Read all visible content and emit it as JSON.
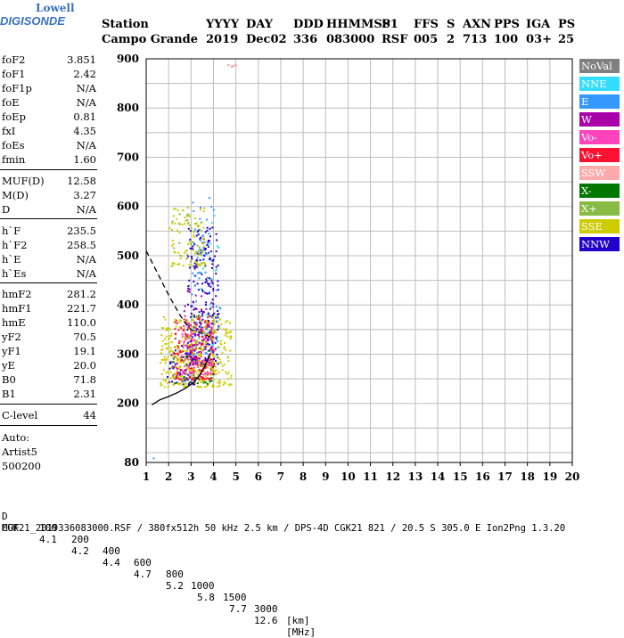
{
  "logo": {
    "line1": "Lowell",
    "line2": "DIGISONDE",
    "color": "#3a6fc4"
  },
  "header": {
    "labels": [
      "Station",
      "YYYY",
      "DAY",
      "DDD",
      "HHMMSS",
      "P1",
      "FFS",
      "S",
      "AXN",
      "PPS",
      "IGA",
      "PS"
    ],
    "values": [
      "Campo Grande",
      "2019",
      "Dec02",
      "336",
      "083000",
      "RSF",
      "005",
      "2",
      "713",
      "100",
      "03+",
      "25"
    ]
  },
  "params": [
    {
      "name": "foF2",
      "value": "3.851"
    },
    {
      "name": "foF1",
      "value": "2.42"
    },
    {
      "name": "foF1p",
      "value": "N/A"
    },
    {
      "name": "foE",
      "value": "N/A"
    },
    {
      "name": "foEp",
      "value": "0.81"
    },
    {
      "name": "fxI",
      "value": "4.35"
    },
    {
      "name": "foEs",
      "value": "N/A"
    },
    {
      "name": "fmin",
      "value": "1.60"
    },
    {
      "name": "MUF(D)",
      "value": "12.58"
    },
    {
      "name": "M(D)",
      "value": "3.27"
    },
    {
      "name": "D",
      "value": "N/A"
    },
    {
      "name": "h`F",
      "value": "235.5"
    },
    {
      "name": "h`F2",
      "value": "258.5"
    },
    {
      "name": "h`E",
      "value": "N/A"
    },
    {
      "name": "h`Es",
      "value": "N/A"
    },
    {
      "name": "hmF2",
      "value": "281.2"
    },
    {
      "name": "hmF1",
      "value": "221.7"
    },
    {
      "name": "hmE",
      "value": "110.0"
    },
    {
      "name": "yF2",
      "value": "70.5"
    },
    {
      "name": "yF1",
      "value": "19.1"
    },
    {
      "name": "yE",
      "value": "20.0"
    },
    {
      "name": "B0",
      "value": "71.8"
    },
    {
      "name": "B1",
      "value": "2.31"
    },
    {
      "name": "C-level",
      "value": "44"
    }
  ],
  "notes": [
    "Auto:",
    "Artist5",
    "500200"
  ],
  "legend": [
    {
      "label": "NoVal",
      "color": "#808080"
    },
    {
      "label": "NNE",
      "color": "#33ddff"
    },
    {
      "label": "E",
      "color": "#3399ff"
    },
    {
      "label": "W",
      "color": "#aa00aa"
    },
    {
      "label": "Vo-",
      "color": "#ff44bb"
    },
    {
      "label": "Vo+",
      "color": "#ff1133"
    },
    {
      "label": "SSW",
      "color": "#ffaaaa"
    },
    {
      "label": "X-",
      "color": "#007700"
    },
    {
      "label": "X+",
      "color": "#88bb44"
    },
    {
      "label": "SSE",
      "color": "#cccc00"
    },
    {
      "label": "NNW",
      "color": "#2200cc"
    }
  ],
  "chart_data": {
    "type": "scatter",
    "xlim": [
      1,
      20
    ],
    "ylim": [
      80,
      900
    ],
    "xticks": [
      "1",
      "2",
      "3",
      "4",
      "5",
      "6",
      "7",
      "8",
      "9",
      "10",
      "11",
      "12",
      "13",
      "14",
      "15",
      "16",
      "17",
      "18",
      "19",
      "20"
    ],
    "yticks": [
      "900",
      "800",
      "700",
      "600",
      "500",
      "400",
      "300",
      "200",
      "80"
    ],
    "grid": true,
    "profile_curve": [
      [
        1.25,
        197
      ],
      [
        1.6,
        207
      ],
      [
        2.0,
        214
      ],
      [
        2.4,
        222
      ],
      [
        2.8,
        232
      ],
      [
        3.1,
        242
      ],
      [
        3.4,
        258
      ],
      [
        3.6,
        275
      ],
      [
        3.75,
        290
      ],
      [
        3.85,
        300
      ]
    ],
    "trace_curve_dashed": [
      [
        1.0,
        510
      ],
      [
        1.5,
        465
      ],
      [
        2.0,
        420
      ],
      [
        2.5,
        380
      ],
      [
        2.8,
        360
      ],
      [
        3.0,
        350
      ],
      [
        3.3,
        345
      ],
      [
        3.6,
        340
      ],
      [
        3.85,
        335
      ]
    ],
    "point_clusters": [
      {
        "color": "#2200cc",
        "fmin": 2.8,
        "fmax": 4.2,
        "hmin": 280,
        "hmax": 560,
        "count": 260
      },
      {
        "color": "#2200cc",
        "fmin": 1.9,
        "fmax": 3.2,
        "hmin": 240,
        "hmax": 320,
        "count": 90
      },
      {
        "color": "#3399ff",
        "fmin": 3.0,
        "fmax": 4.3,
        "hmin": 300,
        "hmax": 650,
        "count": 70
      },
      {
        "color": "#33ddff",
        "fmin": 3.3,
        "fmax": 4.2,
        "hmin": 320,
        "hmax": 600,
        "count": 30
      },
      {
        "color": "#aa00aa",
        "fmin": 2.6,
        "fmax": 4.0,
        "hmin": 280,
        "hmax": 440,
        "count": 60
      },
      {
        "color": "#ff1133",
        "fmin": 2.2,
        "fmax": 4.0,
        "hmin": 250,
        "hmax": 380,
        "count": 220
      },
      {
        "color": "#ff44bb",
        "fmin": 2.4,
        "fmax": 3.9,
        "hmin": 260,
        "hmax": 360,
        "count": 70
      },
      {
        "color": "#cccc00",
        "fmin": 1.6,
        "fmax": 4.8,
        "hmin": 235,
        "hmax": 380,
        "count": 320
      },
      {
        "color": "#cccc00",
        "fmin": 2.0,
        "fmax": 3.6,
        "hmin": 480,
        "hmax": 600,
        "count": 80
      },
      {
        "color": "#88bb44",
        "fmin": 2.1,
        "fmax": 3.5,
        "hmin": 490,
        "hmax": 590,
        "count": 30
      },
      {
        "color": "#007700",
        "fmin": 2.0,
        "fmax": 4.0,
        "hmin": 240,
        "hmax": 320,
        "count": 25
      },
      {
        "color": "#ffaaaa",
        "fmin": 4.6,
        "fmax": 5.0,
        "hmin": 885,
        "hmax": 890,
        "count": 8
      }
    ]
  },
  "muf_table": {
    "d_label": "D",
    "d_values": [
      "100",
      "200",
      "400",
      "600",
      "800",
      "1000",
      "1500",
      "3000"
    ],
    "d_unit": "[km]",
    "muf_label": "MUF",
    "muf_values": [
      "4.1",
      "4.2",
      "4.4",
      "4.7",
      "5.2",
      "5.8",
      "7.7",
      "12.6"
    ],
    "muf_unit": "[MHz]"
  },
  "footer": "CGK21_2019336083000.RSF / 380fx512h 50 kHz 2.5 km / DPS-4D CGK21 821 / 20.5 S 305.0 E Ion2Png 1.3.20"
}
